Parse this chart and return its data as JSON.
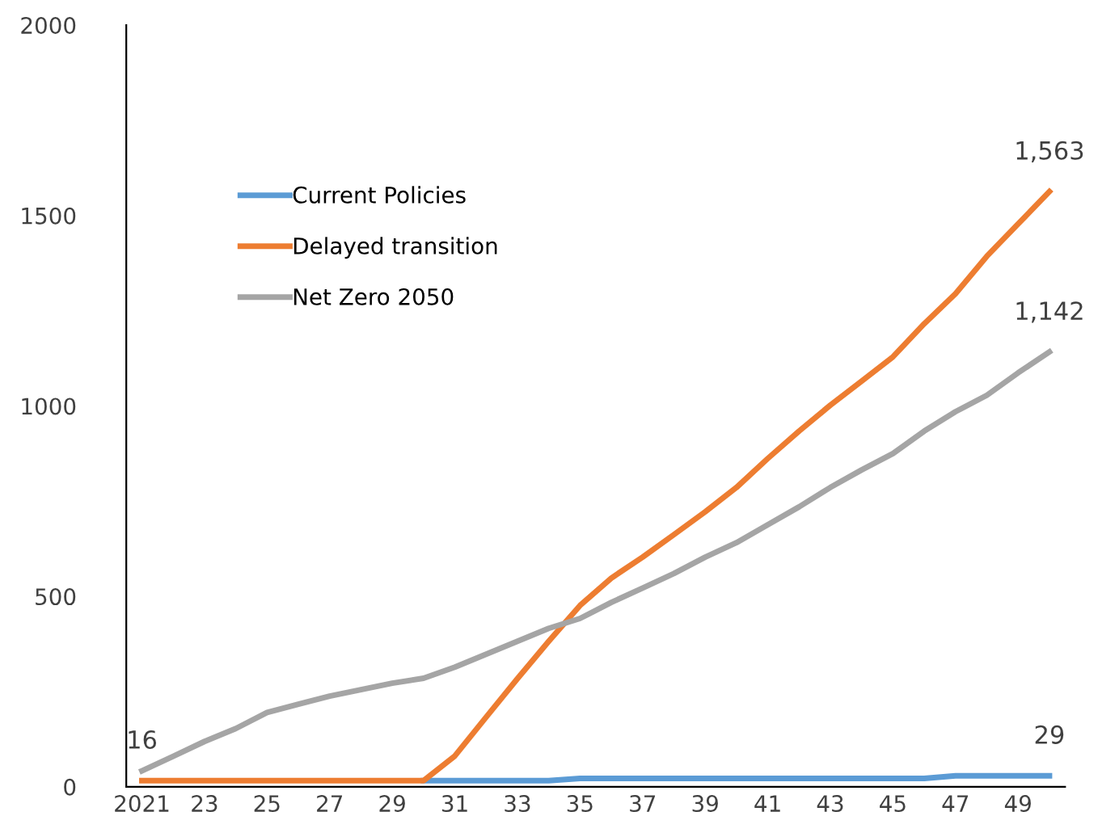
{
  "chart_data": {
    "type": "line",
    "categories": [
      "2021",
      null,
      "23",
      null,
      "25",
      null,
      "27",
      null,
      "29",
      null,
      "31",
      null,
      "33",
      null,
      "35",
      null,
      "37",
      null,
      "39",
      null,
      "41",
      null,
      "43",
      null,
      "45",
      null,
      "47",
      null,
      "49",
      null
    ],
    "series": [
      {
        "name": "Current Policies",
        "color": "#5b9bd5",
        "values": [
          null,
          null,
          null,
          null,
          null,
          null,
          null,
          null,
          null,
          16,
          16,
          16,
          16,
          16,
          22,
          22,
          22,
          22,
          22,
          22,
          22,
          22,
          22,
          22,
          22,
          22,
          29,
          29,
          29,
          29
        ],
        "value_labels": [
          null,
          null,
          null,
          null,
          null,
          null,
          null,
          null,
          null,
          null,
          null,
          null,
          null,
          null,
          null,
          null,
          null,
          null,
          null,
          null,
          null,
          null,
          null,
          null,
          null,
          null,
          null,
          null,
          null,
          "29"
        ]
      },
      {
        "name": "Delayed transition",
        "color": "#ed7d31",
        "values": [
          16,
          16,
          16,
          16,
          16,
          16,
          16,
          16,
          16,
          16,
          81,
          183,
          284,
          382,
          476,
          548,
          603,
          662,
          722,
          786,
          862,
          934,
          1002,
          1065,
          1129,
          1216,
          1295,
          1393,
          1478,
          1563
        ],
        "value_labels": [
          "16",
          null,
          null,
          null,
          null,
          null,
          null,
          null,
          null,
          null,
          null,
          null,
          null,
          null,
          null,
          null,
          null,
          null,
          null,
          null,
          null,
          null,
          null,
          null,
          null,
          null,
          null,
          null,
          null,
          "1,563"
        ]
      },
      {
        "name": "Net Zero 2050",
        "color": "#a5a5a5",
        "values": [
          42,
          80,
          119,
          153,
          195,
          217,
          238,
          255,
          272,
          285,
          314,
          348,
          382,
          416,
          442,
          484,
          522,
          560,
          603,
          641,
          688,
          735,
          786,
          832,
          875,
          934,
          985,
          1028,
          1087,
          1142
        ],
        "value_labels": [
          null,
          null,
          null,
          null,
          null,
          null,
          null,
          null,
          null,
          null,
          null,
          null,
          null,
          null,
          null,
          null,
          null,
          null,
          null,
          null,
          null,
          null,
          null,
          null,
          null,
          null,
          null,
          null,
          null,
          "1,142"
        ]
      }
    ],
    "ylim": [
      0,
      2000
    ],
    "yticks": [
      0,
      500,
      1000,
      1500,
      2000
    ],
    "grid": false,
    "legend": "top left",
    "marker": "none",
    "line_style": "solid"
  }
}
